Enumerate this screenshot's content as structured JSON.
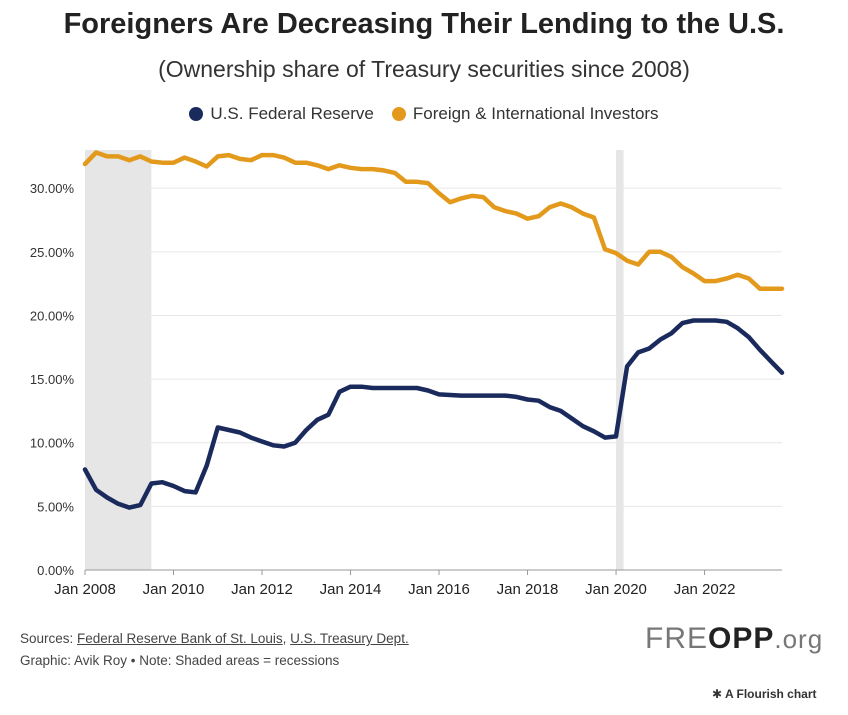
{
  "header": {
    "title": "Foreigners Are Decreasing Their Lending to the U.S.",
    "subtitle": "(Ownership share of Treasury securities since 2008)"
  },
  "colors": {
    "fed": "#1a2a5c",
    "foreign": "#e39a1c",
    "recession": "#e6e6e6",
    "grid": "#e6e6e6"
  },
  "chart_data": {
    "type": "line",
    "title": "Foreigners Are Decreasing Their Lending to the U.S.",
    "subtitle": "(Ownership share of Treasury securities since 2008)",
    "xlabel": "",
    "ylabel": "",
    "xlim": [
      2008.0,
      2023.75
    ],
    "ylim": [
      0,
      33
    ],
    "y_ticks": [
      0,
      5,
      10,
      15,
      20,
      25,
      30
    ],
    "y_tick_labels": [
      "0.00%",
      "5.00%",
      "10.00%",
      "15.00%",
      "20.00%",
      "25.00%",
      "30.00%"
    ],
    "x_ticks": [
      2008,
      2010,
      2012,
      2014,
      2016,
      2018,
      2020,
      2022
    ],
    "x_tick_labels": [
      "Jan 2008",
      "Jan 2010",
      "Jan 2012",
      "Jan 2014",
      "Jan 2016",
      "Jan 2018",
      "Jan 2020",
      "Jan 2022"
    ],
    "grid": true,
    "legend_position": "top-center",
    "recessions": [
      [
        2008.0,
        2009.5
      ],
      [
        2020.0,
        2020.17
      ]
    ],
    "series": [
      {
        "name": "U.S. Federal Reserve",
        "color": "#1a2a5c",
        "x": [
          2008.0,
          2008.25,
          2008.5,
          2008.75,
          2009.0,
          2009.25,
          2009.5,
          2009.75,
          2010.0,
          2010.25,
          2010.5,
          2010.75,
          2011.0,
          2011.25,
          2011.5,
          2011.75,
          2012.0,
          2012.25,
          2012.5,
          2012.75,
          2013.0,
          2013.25,
          2013.5,
          2013.75,
          2014.0,
          2014.25,
          2014.5,
          2014.75,
          2015.0,
          2015.25,
          2015.5,
          2015.75,
          2016.0,
          2016.5,
          2017.0,
          2017.5,
          2017.75,
          2018.0,
          2018.25,
          2018.5,
          2018.75,
          2019.0,
          2019.25,
          2019.5,
          2019.75,
          2020.0,
          2020.25,
          2020.5,
          2020.75,
          2021.0,
          2021.25,
          2021.5,
          2021.75,
          2022.0,
          2022.25,
          2022.5,
          2022.75,
          2023.0,
          2023.25,
          2023.5,
          2023.75
        ],
        "y": [
          7.9,
          6.3,
          5.7,
          5.2,
          4.9,
          5.1,
          6.8,
          6.9,
          6.6,
          6.2,
          6.1,
          8.2,
          11.2,
          11.0,
          10.8,
          10.4,
          10.1,
          9.8,
          9.7,
          10.0,
          11.0,
          11.8,
          12.2,
          14.0,
          14.4,
          14.4,
          14.3,
          14.3,
          14.3,
          14.3,
          14.3,
          14.1,
          13.8,
          13.7,
          13.7,
          13.7,
          13.6,
          13.4,
          13.3,
          12.8,
          12.5,
          11.9,
          11.3,
          10.9,
          10.4,
          10.5,
          16.0,
          17.1,
          17.4,
          18.1,
          18.6,
          19.4,
          19.6,
          19.6,
          19.6,
          19.5,
          19.0,
          18.3,
          17.3,
          16.4,
          15.5
        ]
      },
      {
        "name": "Foreign & International Investors",
        "color": "#e39a1c",
        "x": [
          2008.0,
          2008.25,
          2008.5,
          2008.75,
          2009.0,
          2009.25,
          2009.5,
          2009.75,
          2010.0,
          2010.25,
          2010.5,
          2010.75,
          2011.0,
          2011.25,
          2011.5,
          2011.75,
          2012.0,
          2012.25,
          2012.5,
          2012.75,
          2013.0,
          2013.25,
          2013.5,
          2013.75,
          2014.0,
          2014.25,
          2014.5,
          2014.75,
          2015.0,
          2015.25,
          2015.5,
          2015.75,
          2016.0,
          2016.25,
          2016.5,
          2016.75,
          2017.0,
          2017.25,
          2017.5,
          2017.75,
          2018.0,
          2018.25,
          2018.5,
          2018.75,
          2019.0,
          2019.25,
          2019.5,
          2019.75,
          2020.0,
          2020.25,
          2020.5,
          2020.75,
          2021.0,
          2021.25,
          2021.5,
          2021.75,
          2022.0,
          2022.25,
          2022.5,
          2022.75,
          2023.0,
          2023.25,
          2023.5,
          2023.75
        ],
        "y": [
          31.9,
          32.8,
          32.5,
          32.5,
          32.2,
          32.5,
          32.1,
          32.0,
          32.0,
          32.4,
          32.1,
          31.7,
          32.5,
          32.6,
          32.3,
          32.2,
          32.6,
          32.6,
          32.4,
          32.0,
          32.0,
          31.8,
          31.5,
          31.8,
          31.6,
          31.5,
          31.5,
          31.4,
          31.2,
          30.5,
          30.5,
          30.4,
          29.6,
          28.9,
          29.2,
          29.4,
          29.3,
          28.5,
          28.2,
          28.0,
          27.6,
          27.8,
          28.5,
          28.8,
          28.5,
          28.0,
          27.7,
          25.2,
          24.9,
          24.3,
          24.0,
          25.0,
          25.0,
          24.6,
          23.8,
          23.3,
          22.7,
          22.7,
          22.9,
          23.2,
          22.9,
          22.1,
          22.1,
          22.1
        ]
      }
    ]
  },
  "footer": {
    "sources_prefix": "Sources: ",
    "source_1": "Federal Reserve Bank of St. Louis",
    "separator": ", ",
    "source_2": "U.S. Treasury Dept.",
    "graphic_line": "Graphic: Avik Roy • Note: Shaded areas = recessions",
    "brand_fre": "FRE",
    "brand_opp": "OPP",
    "brand_org": ".org",
    "flourish": "✱ A Flourish chart"
  }
}
